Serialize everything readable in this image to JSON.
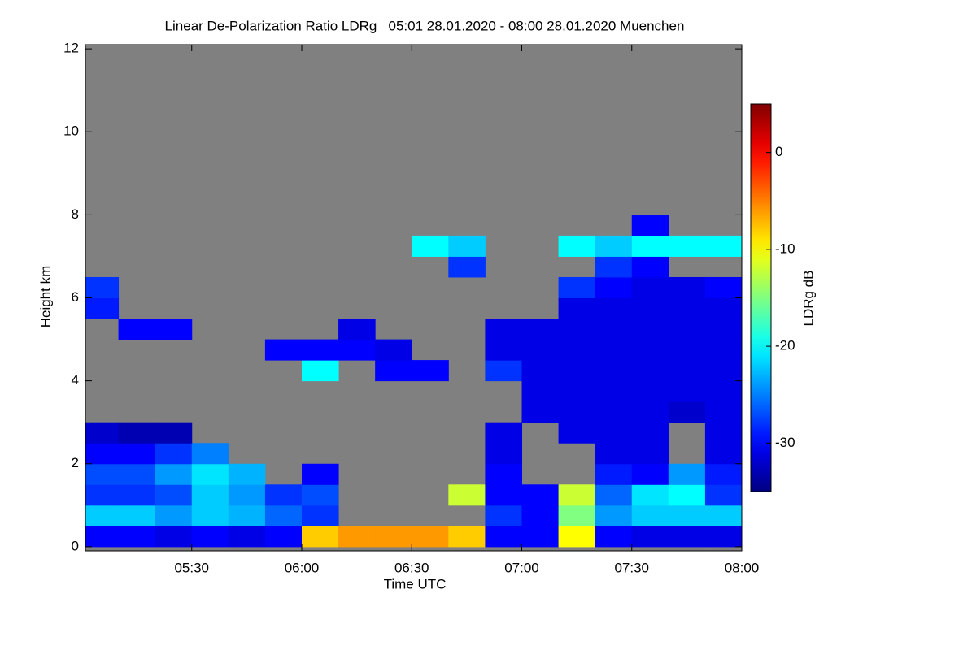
{
  "chart_data": {
    "type": "heatmap",
    "title": "Linear De-Polarization Ratio LDRg   05:01 28.01.2020 - 08:00 28.01.2020 Muenchen",
    "x_label": "Time UTC",
    "y_label": "Height km",
    "colorbar_label": "LDRg dB",
    "colormap": "jet",
    "missing_color": "#808080",
    "x_edges": [
      301,
      310,
      320,
      330,
      340,
      350,
      360,
      370,
      380,
      390,
      400,
      410,
      420,
      430,
      440,
      450,
      460,
      470,
      480
    ],
    "y_edges": [
      0,
      0.5,
      1,
      1.5,
      2,
      2.5,
      3,
      3.5,
      4,
      4.5,
      5,
      5.5,
      6,
      6.5,
      7,
      7.5,
      8
    ],
    "z": [
      [
        -30,
        -30,
        -31,
        -30,
        -31,
        -30,
        -8,
        -6,
        -6,
        -6,
        -8,
        -30,
        -30,
        -10,
        -30,
        -31,
        -31,
        -31
      ],
      [
        -22,
        -22,
        -24,
        -22,
        -23,
        -26,
        -28,
        null,
        null,
        null,
        null,
        -28,
        -30,
        -15,
        -24,
        -22,
        -22,
        -22
      ],
      [
        -28,
        -28,
        -27,
        -22,
        -24,
        -28,
        -27,
        null,
        null,
        null,
        -12,
        -30,
        -30,
        -12,
        -26,
        -21,
        -20,
        -28
      ],
      [
        -27,
        -27,
        -24,
        -21,
        -23,
        null,
        -30,
        null,
        null,
        null,
        null,
        -30,
        null,
        null,
        -29,
        -30,
        -24,
        -29
      ],
      [
        -30,
        -30,
        -28,
        -25,
        null,
        null,
        null,
        null,
        null,
        null,
        null,
        -31,
        null,
        null,
        -31,
        -31,
        null,
        -31
      ],
      [
        -32,
        -33,
        -33,
        null,
        null,
        null,
        null,
        null,
        null,
        null,
        null,
        -31,
        null,
        -31,
        -31,
        -31,
        null,
        -31
      ],
      [
        null,
        null,
        null,
        null,
        null,
        null,
        null,
        null,
        null,
        null,
        null,
        null,
        -31,
        -31,
        -31,
        -31,
        -32,
        -31
      ],
      [
        null,
        null,
        null,
        null,
        null,
        null,
        null,
        null,
        null,
        null,
        null,
        null,
        -31,
        -31,
        -31,
        -31,
        -31,
        -31
      ],
      [
        null,
        null,
        null,
        null,
        null,
        null,
        -20,
        null,
        -30,
        -30,
        null,
        -28,
        -31,
        -31,
        -31,
        -31,
        -31,
        -31
      ],
      [
        null,
        null,
        null,
        null,
        null,
        -30,
        -30,
        -30,
        -31,
        null,
        null,
        -31,
        -31,
        -31,
        -31,
        -31,
        -31,
        -31
      ],
      [
        null,
        -30,
        -30,
        null,
        null,
        null,
        null,
        -31,
        null,
        null,
        null,
        -31,
        -31,
        -31,
        -31,
        -31,
        -31,
        -31
      ],
      [
        -29,
        null,
        null,
        null,
        null,
        null,
        null,
        null,
        null,
        null,
        null,
        null,
        null,
        -31,
        -31,
        -31,
        -31,
        -31
      ],
      [
        -28,
        null,
        null,
        null,
        null,
        null,
        null,
        null,
        null,
        null,
        null,
        null,
        null,
        -28,
        -30,
        -31,
        -31,
        -30
      ],
      [
        null,
        null,
        null,
        null,
        null,
        null,
        null,
        null,
        null,
        null,
        -28,
        null,
        null,
        null,
        -28,
        -30,
        null,
        null
      ],
      [
        null,
        null,
        null,
        null,
        null,
        null,
        null,
        null,
        null,
        -20,
        -22,
        null,
        null,
        -20,
        -22,
        -20,
        -20,
        -20
      ],
      [
        null,
        null,
        null,
        null,
        null,
        null,
        null,
        null,
        null,
        null,
        null,
        null,
        null,
        null,
        null,
        -30,
        null,
        null
      ]
    ],
    "xlim": [
      301,
      480
    ],
    "xticks": [
      {
        "value": 330,
        "label": "05:30"
      },
      {
        "value": 360,
        "label": "06:00"
      },
      {
        "value": 390,
        "label": "06:30"
      },
      {
        "value": 420,
        "label": "07:00"
      },
      {
        "value": 450,
        "label": "07:30"
      },
      {
        "value": 480,
        "label": "08:00"
      }
    ],
    "ylim": [
      -0.1,
      12.1
    ],
    "yticks": [
      0,
      2,
      4,
      6,
      8,
      10,
      12
    ],
    "zlim": [
      -35,
      5
    ],
    "zticks": [
      0,
      -10,
      -20,
      -30
    ]
  }
}
